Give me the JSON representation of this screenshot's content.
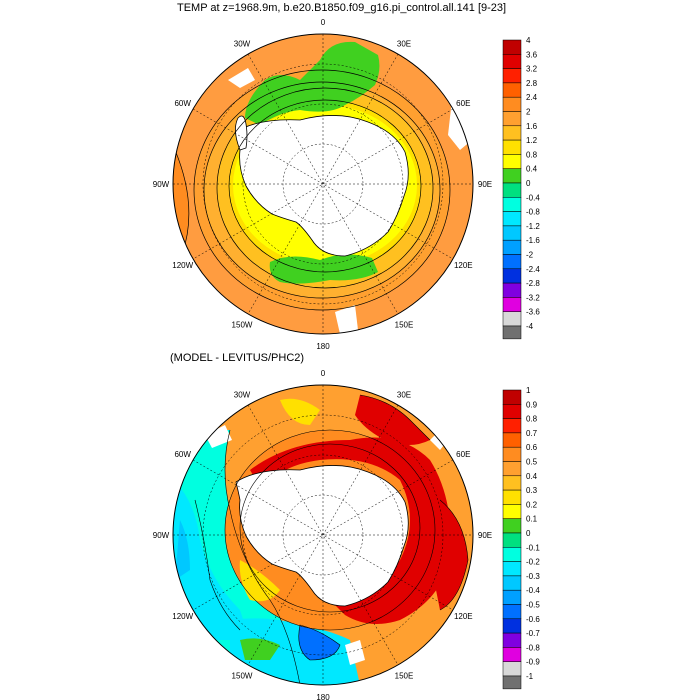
{
  "top_panel": {
    "title": "TEMP at z=1968.9m, b.e20.B1850.f09_g16.pi_control.all.141 [9-23]",
    "longitude_labels": [
      "0",
      "30E",
      "60E",
      "90E",
      "120E",
      "150E",
      "180",
      "150W",
      "120W",
      "90W",
      "60W",
      "30W"
    ],
    "colorbar": {
      "levels": [
        "4",
        "3.6",
        "3.2",
        "2.8",
        "2.4",
        "2",
        "1.6",
        "1.2",
        "0.8",
        "0.4",
        "0",
        "-0.4",
        "-0.8",
        "-1.2",
        "-1.6",
        "-2",
        "-2.4",
        "-2.8",
        "-3.2",
        "-3.6",
        "-4"
      ],
      "colors": [
        "#c00000",
        "#e00000",
        "#ff2000",
        "#ff6000",
        "#ff8c20",
        "#ffa030",
        "#ffc020",
        "#ffe000",
        "#ffff00",
        "#40d020",
        "#00e080",
        "#00ffe0",
        "#00e8ff",
        "#00c8ff",
        "#00a0ff",
        "#0070ff",
        "#0030e0",
        "#8000e0",
        "#e000e0",
        "#d8d8d8",
        "#707070"
      ]
    }
  },
  "bottom_panel": {
    "title": "(MODEL - LEVITUS/PHC2)",
    "longitude_labels": [
      "0",
      "30E",
      "60E",
      "90E",
      "120E",
      "150E",
      "180",
      "150W",
      "120W",
      "90W",
      "60W",
      "30W"
    ],
    "colorbar": {
      "levels": [
        "1",
        "0.9",
        "0.8",
        "0.7",
        "0.6",
        "0.5",
        "0.4",
        "0.3",
        "0.2",
        "0.1",
        "0",
        "-0.1",
        "-0.2",
        "-0.3",
        "-0.4",
        "-0.5",
        "-0.6",
        "-0.7",
        "-0.8",
        "-0.9",
        "-1"
      ],
      "colors": [
        "#c00000",
        "#e00000",
        "#ff2000",
        "#ff6000",
        "#ff8c20",
        "#ffa030",
        "#ffc020",
        "#ffe000",
        "#ffff00",
        "#40d020",
        "#00e080",
        "#00ffe0",
        "#00e8ff",
        "#00c8ff",
        "#00a0ff",
        "#0070ff",
        "#0030e0",
        "#8000e0",
        "#e000e0",
        "#d8d8d8",
        "#707070"
      ]
    }
  }
}
